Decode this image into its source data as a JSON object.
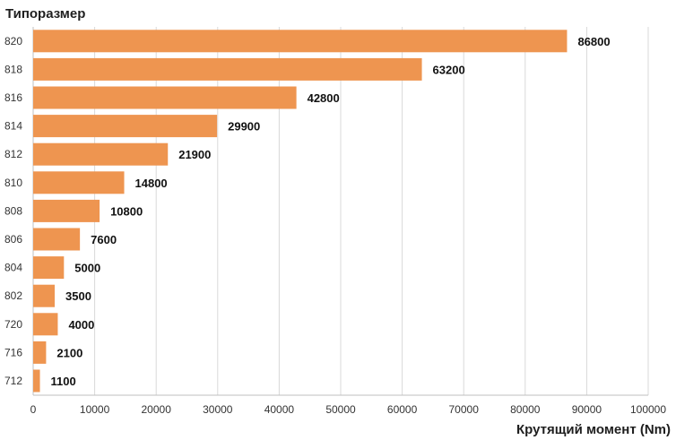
{
  "chart_data": {
    "type": "bar",
    "orientation": "horizontal",
    "title": "",
    "ylabel": "Типоразмер",
    "xlabel": "Крутящий момент (Nm)",
    "categories": [
      "820",
      "818",
      "816",
      "814",
      "812",
      "810",
      "808",
      "806",
      "804",
      "802",
      "720",
      "716",
      "712"
    ],
    "values": [
      86800,
      63200,
      42800,
      29900,
      21900,
      14800,
      10800,
      7600,
      5000,
      3500,
      4000,
      2100,
      1100
    ],
    "xlim": [
      0,
      100000
    ],
    "xticks": [
      0,
      10000,
      20000,
      30000,
      40000,
      50000,
      60000,
      70000,
      80000,
      90000,
      100000
    ],
    "grid": "vertical",
    "legend": "none",
    "bar_color": "#EE9550",
    "grid_color": "#D9D9D9"
  }
}
